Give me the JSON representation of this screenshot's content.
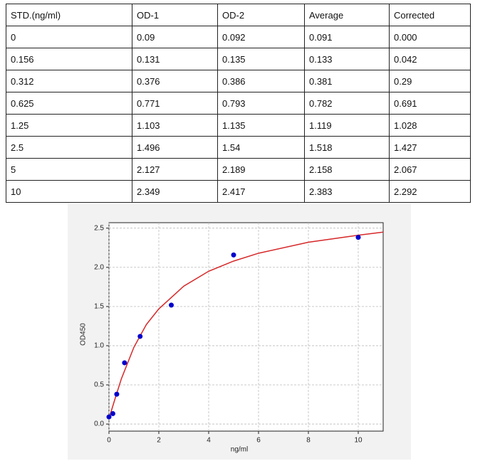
{
  "table": {
    "header": [
      "STD.(ng/ml)",
      "OD-1",
      "OD-2",
      "Average",
      "Corrected"
    ],
    "rows": [
      [
        "0",
        "0.09",
        "0.092",
        "0.091",
        "0.000"
      ],
      [
        "0.156",
        "0.131",
        "0.135",
        "0.133",
        "0.042"
      ],
      [
        "0.312",
        "0.376",
        "0.386",
        "0.381",
        "0.29"
      ],
      [
        "0.625",
        "0.771",
        "0.793",
        "0.782",
        "0.691"
      ],
      [
        "1.25",
        "1.103",
        "1.135",
        "1.119",
        "1.028"
      ],
      [
        "2.5",
        "1.496",
        "1.54",
        "1.518",
        "1.427"
      ],
      [
        "5",
        "2.127",
        "2.189",
        "2.158",
        "2.067"
      ],
      [
        "10",
        "2.349",
        "2.417",
        "2.383",
        "2.292"
      ]
    ]
  },
  "chart_data": {
    "type": "scatter",
    "xlabel": "ng/ml",
    "ylabel": "OD450",
    "xlim": [
      0,
      11
    ],
    "ylim": [
      -0.09,
      2.57
    ],
    "xticks": [
      0,
      2,
      4,
      6,
      8,
      10
    ],
    "yticks": [
      {
        "value": 0,
        "label": "0.0"
      },
      0.5,
      {
        "value": 1,
        "label": "1.0"
      },
      1.5,
      {
        "value": 2,
        "label": "2.0"
      },
      2.5
    ],
    "grid": true,
    "points": {
      "color": "#0000cc",
      "x": [
        0,
        0.156,
        0.312,
        0.625,
        1.25,
        2.5,
        5,
        10
      ],
      "values": [
        0.091,
        0.133,
        0.381,
        0.782,
        1.119,
        1.518,
        2.158,
        2.383
      ]
    },
    "fit": {
      "color": "#d62728",
      "x": [
        0,
        0.25,
        0.5,
        1,
        1.5,
        2,
        3,
        4,
        5,
        6,
        8,
        10,
        11
      ],
      "values": [
        0.07,
        0.33,
        0.58,
        0.98,
        1.27,
        1.47,
        1.76,
        1.95,
        2.08,
        2.18,
        2.32,
        2.41,
        2.45
      ]
    }
  }
}
